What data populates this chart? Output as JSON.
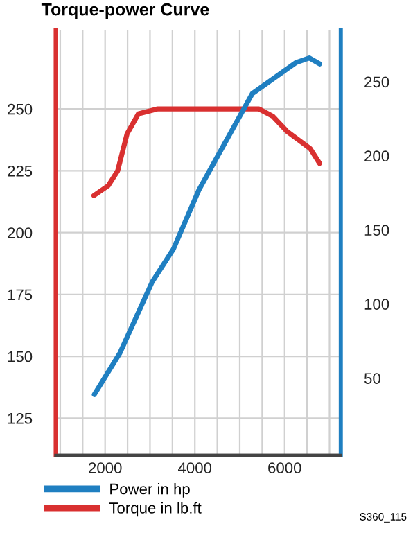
{
  "chart_data": {
    "type": "line",
    "title": "Torque-power Curve",
    "xlim": [
      900,
      7250
    ],
    "xticks": [
      {
        "value": 1000,
        "label": null
      },
      {
        "value": 1500,
        "label": null
      },
      2000,
      {
        "value": 2500,
        "label": null
      },
      {
        "value": 3000,
        "label": null
      },
      {
        "value": 3500,
        "label": null
      },
      4000,
      {
        "value": 4500,
        "label": null
      },
      {
        "value": 5000,
        "label": null
      },
      {
        "value": 5500,
        "label": null
      },
      6000,
      {
        "value": 6500,
        "label": null
      },
      {
        "value": 7000,
        "label": null
      }
    ],
    "ylim": [
      110,
      282
    ],
    "yticks": [
      125,
      150,
      175,
      200,
      225,
      250
    ],
    "y2lim": [
      -2,
      285
    ],
    "y2ticks": [
      50,
      100,
      150,
      200,
      250
    ],
    "grid": true,
    "legend": "bottom",
    "line_style": "solid",
    "series": [
      {
        "name": "Power in hp",
        "color": "#1f7fc1",
        "axis": "y2",
        "x": [
          1760,
          2330,
          3050,
          3520,
          4090,
          5280,
          5840,
          6260,
          6550,
          6780
        ],
        "values": [
          39,
          67,
          115,
          137,
          177,
          242,
          254,
          263,
          266,
          262
        ]
      },
      {
        "name": "Torque in lb.ft",
        "color": "#d93030",
        "axis": "y",
        "x": [
          1750,
          2070,
          2280,
          2490,
          2740,
          3160,
          5430,
          5740,
          6050,
          6570,
          6780
        ],
        "values": [
          215,
          219,
          225,
          240,
          248,
          250,
          250,
          247,
          241,
          234,
          228
        ]
      }
    ],
    "annotations": [
      "S360_115"
    ]
  }
}
